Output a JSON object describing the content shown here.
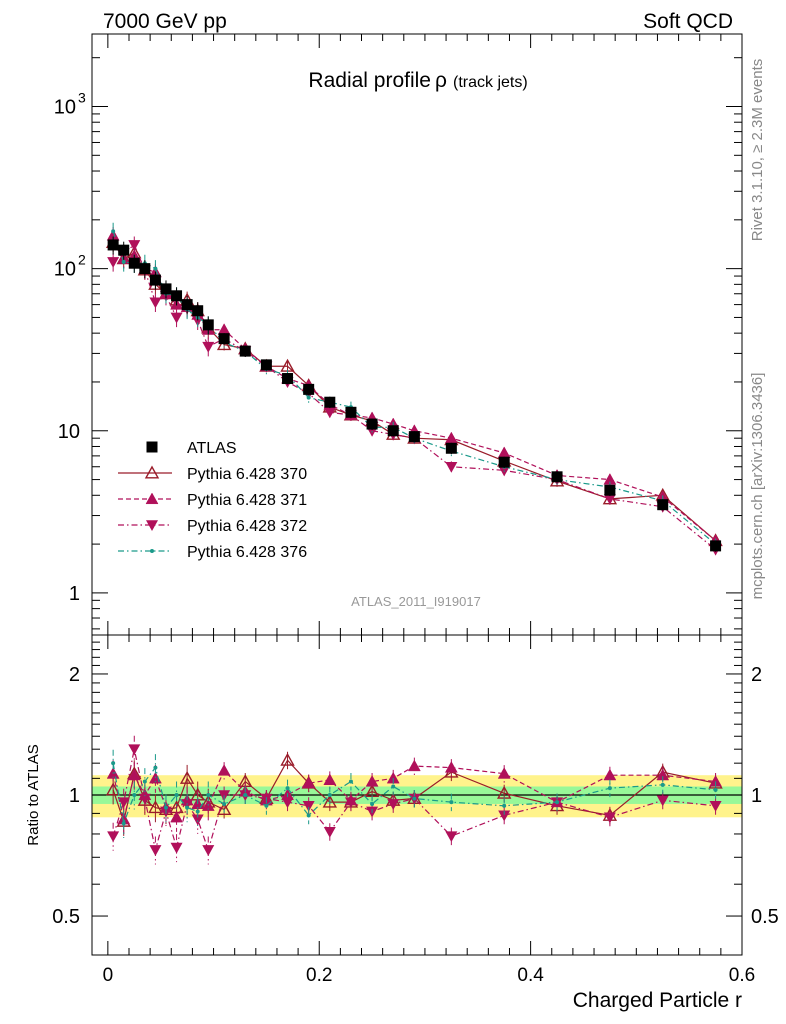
{
  "header": {
    "left": "7000 GeV pp",
    "right": "Soft QCD"
  },
  "side": {
    "rivet": "Rivet 3.1.10, ≥ 2.3M events",
    "mcplots": "mcplots.cern.ch [arXiv:1306.3436]"
  },
  "watermark": "ATLAS_2011_I919017",
  "colors": {
    "data": "#000000",
    "p370": "#9a1c2a",
    "p371": "#b0105a",
    "p372": "#b0105a",
    "p376": "#1a9a8a",
    "band_inner": "#98f898",
    "band_outer": "#fff38c"
  },
  "chart_data": [
    {
      "type": "scatter",
      "title_main": "Radial profile",
      "title_symbol": "ρ",
      "title_suffix": "(track jets)",
      "xlabel": "Charged Particle r",
      "ylabel": "",
      "log_y": true,
      "xlim": [
        -0.015,
        0.6
      ],
      "ylim": [
        0.55,
        2800
      ],
      "yticks": [
        {
          "value": 1,
          "label": "1"
        },
        {
          "value": 10,
          "label": "10"
        },
        {
          "value": 100,
          "label": "10",
          "sup": "2"
        },
        {
          "value": 1000,
          "label": "10",
          "sup": "3"
        }
      ],
      "legend_position": "center-left",
      "x": [
        0.005,
        0.015,
        0.025,
        0.035,
        0.045,
        0.055,
        0.065,
        0.075,
        0.085,
        0.095,
        0.11,
        0.13,
        0.15,
        0.17,
        0.19,
        0.21,
        0.23,
        0.25,
        0.27,
        0.29,
        0.325,
        0.375,
        0.425,
        0.475,
        0.525,
        0.575
      ],
      "series": [
        {
          "name": "ATLAS",
          "marker": "square",
          "values": [
            140,
            130,
            108,
            100,
            85,
            75,
            68,
            60,
            55,
            45,
            37,
            31,
            25.5,
            21,
            18,
            15,
            13,
            11,
            10,
            9.2,
            7.8,
            6.4,
            5.2,
            4.3,
            3.5,
            1.95
          ]
        },
        {
          "name": "Pythia 6.428 370",
          "marker": "triangle-up-open",
          "values": [
            145,
            115,
            125,
            98,
            80,
            70,
            64,
            64,
            55,
            43,
            34,
            32,
            25,
            25,
            19,
            14,
            12.5,
            11.5,
            9.5,
            9,
            8.8,
            6.5,
            4.9,
            3.8,
            4.0,
            2.1
          ]
        },
        {
          "name": "Pythia 6.428 371",
          "marker": "triangle-up",
          "values": [
            160,
            115,
            120,
            100,
            95,
            70,
            60,
            58,
            52,
            42,
            42,
            32,
            25,
            21,
            19,
            14.5,
            12.5,
            12,
            11,
            10,
            9,
            7.3,
            5.3,
            5.0,
            3.9,
            2.1
          ]
        },
        {
          "name": "Pythia 6.428 372",
          "marker": "triangle-down",
          "values": [
            110,
            125,
            140,
            98,
            62,
            68,
            50,
            57,
            48,
            33,
            37,
            31,
            25,
            20,
            17,
            13,
            12.5,
            10,
            9.5,
            9,
            6.0,
            5.7,
            5.0,
            3.8,
            3.4,
            1.85
          ]
        },
        {
          "name": "Pythia 6.428 376",
          "marker": "dot",
          "values": [
            170,
            110,
            108,
            108,
            100,
            70,
            68,
            56,
            50,
            45,
            35,
            31,
            24,
            22,
            16,
            15,
            14,
            10.5,
            10.5,
            9,
            7.5,
            6.0,
            5.0,
            4.5,
            3.7,
            2.0
          ]
        }
      ]
    },
    {
      "type": "scatter",
      "xlabel": "Charged Particle r",
      "ylabel": "Ratio to ATLAS",
      "log_y": true,
      "xlim": [
        -0.015,
        0.6
      ],
      "ylim": [
        0.4,
        2.5
      ],
      "xticks": [
        {
          "value": 0,
          "label": "0"
        },
        {
          "value": 0.2,
          "label": "0.2"
        },
        {
          "value": 0.4,
          "label": "0.4"
        },
        {
          "value": 0.6,
          "label": "0.6"
        }
      ],
      "yticks": [
        {
          "value": 0.5,
          "label": "0.5"
        },
        {
          "value": 1,
          "label": "1"
        },
        {
          "value": 2,
          "label": "2"
        }
      ],
      "band_inner": [
        0.95,
        1.05
      ],
      "band_outer": [
        0.88,
        1.12
      ],
      "x": [
        0.005,
        0.015,
        0.025,
        0.035,
        0.045,
        0.055,
        0.065,
        0.075,
        0.085,
        0.095,
        0.11,
        0.13,
        0.15,
        0.17,
        0.19,
        0.21,
        0.23,
        0.25,
        0.27,
        0.29,
        0.325,
        0.375,
        0.425,
        0.475,
        0.525,
        0.575
      ],
      "series": [
        {
          "name": "Pythia 6.428 370",
          "marker": "triangle-up-open",
          "values": [
            1.03,
            0.86,
            1.13,
            0.97,
            0.93,
            0.92,
            0.93,
            1.1,
            1.0,
            0.96,
            0.92,
            1.08,
            0.98,
            1.22,
            1.07,
            0.96,
            0.96,
            1.02,
            0.97,
            0.98,
            1.14,
            1.01,
            0.94,
            0.89,
            1.14,
            1.07
          ]
        },
        {
          "name": "Pythia 6.428 371",
          "marker": "triangle-up",
          "values": [
            1.13,
            0.87,
            1.12,
            1.0,
            1.1,
            0.93,
            0.88,
            0.97,
            0.95,
            0.94,
            1.15,
            1.02,
            0.97,
            1.0,
            1.07,
            1.09,
            0.97,
            1.08,
            1.1,
            1.18,
            1.17,
            1.13,
            0.96,
            1.12,
            1.12,
            1.08
          ]
        },
        {
          "name": "Pythia 6.428 372",
          "marker": "triangle-down",
          "values": [
            0.79,
            0.96,
            1.3,
            0.98,
            0.73,
            0.91,
            0.74,
            0.95,
            0.87,
            0.73,
            1.0,
            1.0,
            0.98,
            0.96,
            0.94,
            0.81,
            0.96,
            0.91,
            0.95,
            0.98,
            0.79,
            0.89,
            0.96,
            0.88,
            0.97,
            0.94
          ]
        },
        {
          "name": "Pythia 6.428 376",
          "marker": "dot",
          "values": [
            1.2,
            0.85,
            1.0,
            1.08,
            1.17,
            0.93,
            1.0,
            0.93,
            0.91,
            1.0,
            0.95,
            1.0,
            0.94,
            1.04,
            0.89,
            1.0,
            1.08,
            0.95,
            1.05,
            0.98,
            0.96,
            0.94,
            0.96,
            1.04,
            1.06,
            1.03
          ]
        }
      ]
    }
  ]
}
